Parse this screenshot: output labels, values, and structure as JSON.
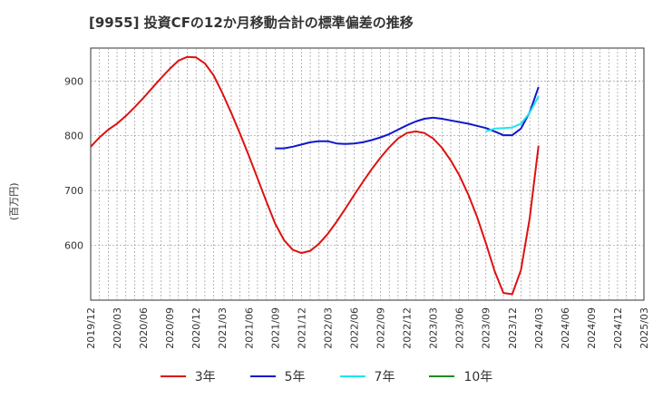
{
  "title": "[9955]  投資CFの12か月移動合計の標準偏差の推移",
  "chart_data": {
    "type": "line",
    "title": "[9955]  投資CFの12か月移動合計の標準偏差の推移",
    "ylabel": "(百万円)",
    "xlabel": "",
    "ylim": [
      500,
      960
    ],
    "yticks": [
      600,
      700,
      800,
      900
    ],
    "x_ticks": [
      "2019/12",
      "2020/03",
      "2020/06",
      "2020/09",
      "2020/12",
      "2021/03",
      "2021/06",
      "2021/09",
      "2021/12",
      "2022/03",
      "2022/06",
      "2022/09",
      "2022/12",
      "2023/03",
      "2023/06",
      "2023/09",
      "2023/12",
      "2024/03",
      "2024/06",
      "2024/09",
      "2024/12",
      "2025/03"
    ],
    "grid": true,
    "legend_position": "bottom",
    "series": [
      {
        "name": "3年",
        "color": "#dd1111",
        "points": [
          [
            "2019/12",
            780
          ],
          [
            "2020/01",
            797
          ],
          [
            "2020/02",
            811
          ],
          [
            "2020/03",
            822
          ],
          [
            "2020/04",
            836
          ],
          [
            "2020/05",
            852
          ],
          [
            "2020/06",
            869
          ],
          [
            "2020/07",
            887
          ],
          [
            "2020/08",
            905
          ],
          [
            "2020/09",
            922
          ],
          [
            "2020/10",
            937
          ],
          [
            "2020/11",
            944
          ],
          [
            "2020/12",
            943
          ],
          [
            "2021/01",
            932
          ],
          [
            "2021/02",
            910
          ],
          [
            "2021/03",
            878
          ],
          [
            "2021/04",
            842
          ],
          [
            "2021/05",
            804
          ],
          [
            "2021/06",
            764
          ],
          [
            "2021/07",
            722
          ],
          [
            "2021/08",
            680
          ],
          [
            "2021/09",
            640
          ],
          [
            "2021/10",
            610
          ],
          [
            "2021/11",
            592
          ],
          [
            "2021/12",
            586
          ],
          [
            "2022/01",
            590
          ],
          [
            "2022/02",
            603
          ],
          [
            "2022/03",
            621
          ],
          [
            "2022/04",
            643
          ],
          [
            "2022/05",
            667
          ],
          [
            "2022/06",
            692
          ],
          [
            "2022/07",
            716
          ],
          [
            "2022/08",
            739
          ],
          [
            "2022/09",
            760
          ],
          [
            "2022/10",
            779
          ],
          [
            "2022/11",
            795
          ],
          [
            "2022/12",
            805
          ],
          [
            "2023/01",
            808
          ],
          [
            "2023/02",
            805
          ],
          [
            "2023/03",
            795
          ],
          [
            "2023/04",
            778
          ],
          [
            "2023/05",
            755
          ],
          [
            "2023/06",
            727
          ],
          [
            "2023/07",
            693
          ],
          [
            "2023/08",
            652
          ],
          [
            "2023/09",
            604
          ],
          [
            "2023/10",
            553
          ],
          [
            "2023/11",
            513
          ],
          [
            "2023/12",
            511
          ],
          [
            "2024/01",
            555
          ],
          [
            "2024/02",
            650
          ],
          [
            "2024/03",
            782
          ]
        ]
      },
      {
        "name": "5年",
        "color": "#0f17cc",
        "points": [
          [
            "2021/09",
            777
          ],
          [
            "2021/10",
            777
          ],
          [
            "2021/11",
            780
          ],
          [
            "2021/12",
            784
          ],
          [
            "2022/01",
            788
          ],
          [
            "2022/02",
            790
          ],
          [
            "2022/03",
            790
          ],
          [
            "2022/04",
            786
          ],
          [
            "2022/05",
            785
          ],
          [
            "2022/06",
            786
          ],
          [
            "2022/07",
            788
          ],
          [
            "2022/08",
            792
          ],
          [
            "2022/09",
            797
          ],
          [
            "2022/10",
            803
          ],
          [
            "2022/11",
            811
          ],
          [
            "2022/12",
            819
          ],
          [
            "2023/01",
            826
          ],
          [
            "2023/02",
            831
          ],
          [
            "2023/03",
            833
          ],
          [
            "2023/04",
            831
          ],
          [
            "2023/05",
            828
          ],
          [
            "2023/06",
            825
          ],
          [
            "2023/07",
            822
          ],
          [
            "2023/08",
            818
          ],
          [
            "2023/09",
            814
          ],
          [
            "2023/10",
            808
          ],
          [
            "2023/11",
            801
          ],
          [
            "2023/12",
            801
          ],
          [
            "2024/01",
            813
          ],
          [
            "2024/02",
            843
          ],
          [
            "2024/03",
            889
          ]
        ]
      },
      {
        "name": "7年",
        "color": "#1ce6f0",
        "points": [
          [
            "2023/09",
            808
          ],
          [
            "2023/10",
            813
          ],
          [
            "2023/11",
            814
          ],
          [
            "2023/12",
            815
          ],
          [
            "2024/01",
            822
          ],
          [
            "2024/02",
            842
          ],
          [
            "2024/03",
            872
          ]
        ]
      },
      {
        "name": "10年",
        "color": "#228b22",
        "points": []
      }
    ]
  }
}
